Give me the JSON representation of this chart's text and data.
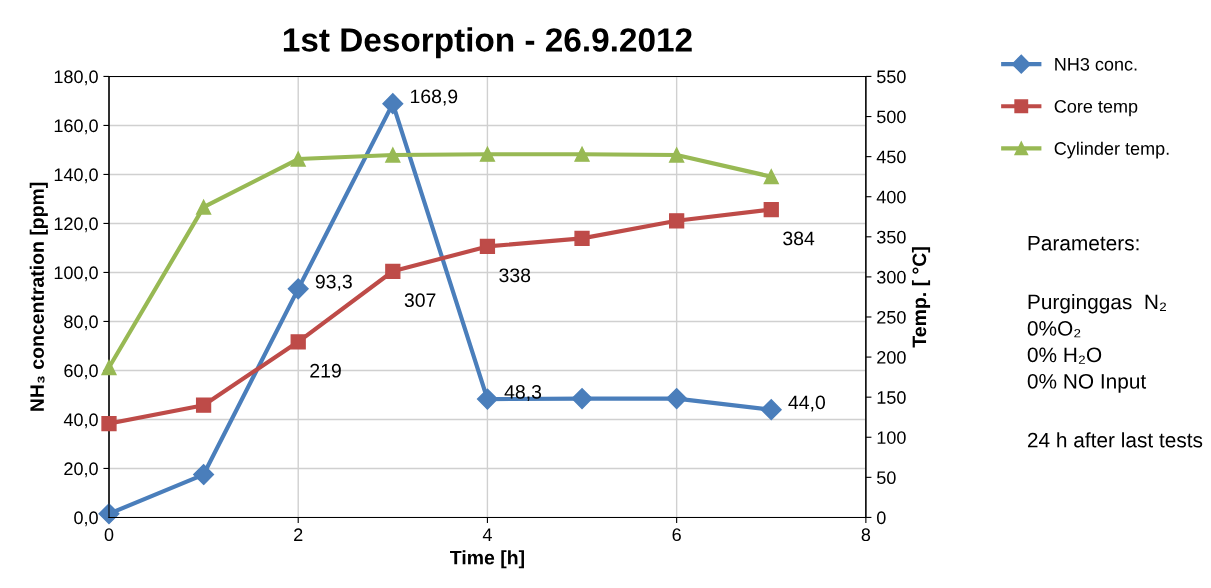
{
  "chart_data": {
    "type": "line",
    "title": "1st Desorption - 26.9.2012",
    "xlabel": "Time [h]",
    "ylabel": "NH₃ concentration [ppm]",
    "y2label": "Temp. [ °C]",
    "x": [
      0,
      1,
      2,
      3,
      4,
      5,
      6,
      7
    ],
    "series": [
      {
        "name": "NH3 conc.",
        "color": "#4a7ebb",
        "marker": "diamond",
        "values": [
          1.5,
          17.5,
          93.3,
          168.9,
          48.3,
          48.5,
          48.5,
          44.0
        ],
        "value_labels": [
          null,
          null,
          "93,3",
          "168,9",
          "48,3",
          null,
          null,
          "44,0"
        ]
      },
      {
        "name": "Core temp",
        "color": "#be4b48",
        "marker": "square",
        "axis": "y2",
        "values": [
          117,
          140,
          219,
          307,
          338,
          348,
          370,
          384
        ],
        "value_labels": [
          null,
          null,
          "219",
          "307",
          "338",
          null,
          null,
          "384"
        ]
      },
      {
        "name": "Cylinder temp.",
        "color": "#98b954",
        "marker": "triangle",
        "axis": "y2",
        "values": [
          187,
          387,
          447,
          452,
          453,
          453,
          452,
          425
        ]
      }
    ],
    "xlim": [
      0,
      8
    ],
    "xticks": [
      0,
      2,
      4,
      6,
      8
    ],
    "ylim": [
      0,
      180
    ],
    "yticks": [
      {
        "value": 0,
        "label": "0,0"
      },
      {
        "value": 20,
        "label": "20,0"
      },
      {
        "value": 40,
        "label": "40,0"
      },
      {
        "value": 60,
        "label": "60,0"
      },
      {
        "value": 80,
        "label": "80,0"
      },
      {
        "value": 100,
        "label": "100,0"
      },
      {
        "value": 120,
        "label": "120,0"
      },
      {
        "value": 140,
        "label": "140,0"
      },
      {
        "value": 160,
        "label": "160,0"
      },
      {
        "value": 180,
        "label": "180,0"
      }
    ],
    "y2lim": [
      0,
      550
    ],
    "y2ticks": [
      0,
      50,
      100,
      150,
      200,
      250,
      300,
      350,
      400,
      450,
      500,
      550
    ],
    "grid": true,
    "legend": "right",
    "annotations": [
      "Parameters:",
      "Purginggas  N₂",
      "0%O₂",
      "0% H₂O",
      "0% NO Input",
      "24 h after last tests"
    ]
  }
}
